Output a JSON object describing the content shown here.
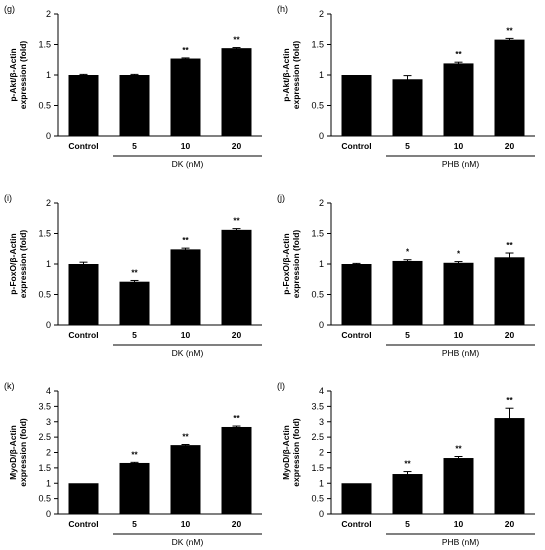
{
  "chart_data": [
    {
      "type": "bar",
      "panel_label": "(g)",
      "ylabel": [
        "p-Akt/β-Actin",
        "expression (fold)"
      ],
      "yticks": [
        "0",
        "0.5",
        "1",
        "1.5",
        "2"
      ],
      "ylim": [
        0,
        2
      ],
      "categories": [
        "Control",
        "5",
        "10",
        "20"
      ],
      "group_label": "DK  (nM)",
      "values": [
        1.0,
        1.0,
        1.27,
        1.44
      ],
      "errors": [
        0.01,
        0.01,
        0.01,
        0.01
      ],
      "significance": [
        "",
        "",
        "**",
        "**"
      ],
      "bar_color": "#000000"
    },
    {
      "type": "bar",
      "panel_label": "(h)",
      "ylabel": [
        "p-Akt/β-Actin",
        "expression (fold)"
      ],
      "yticks": [
        "0",
        "0.5",
        "1",
        "1.5",
        "2"
      ],
      "ylim": [
        0,
        2
      ],
      "categories": [
        "Control",
        "5",
        "10",
        "20"
      ],
      "group_label": "PHB  (nM)",
      "values": [
        1.0,
        0.93,
        1.19,
        1.58
      ],
      "errors": [
        0.0,
        0.06,
        0.02,
        0.02
      ],
      "significance": [
        "",
        "",
        "**",
        "**"
      ],
      "bar_color": "#000000"
    },
    {
      "type": "bar",
      "panel_label": "(i)",
      "ylabel": [
        "p-FoxO/β-Actin",
        "expression (fold)"
      ],
      "yticks": [
        "0",
        "0.5",
        "1",
        "1.5",
        "2"
      ],
      "ylim": [
        0,
        2
      ],
      "categories": [
        "Control",
        "5",
        "10",
        "20"
      ],
      "group_label": "DK  (nM)",
      "values": [
        1.0,
        0.71,
        1.24,
        1.56
      ],
      "errors": [
        0.03,
        0.02,
        0.02,
        0.02
      ],
      "significance": [
        "",
        "**",
        "**",
        "**"
      ],
      "bar_color": "#000000"
    },
    {
      "type": "bar",
      "panel_label": "(j)",
      "ylabel": [
        "p-FoxO/β-Actin",
        "expression (fold)"
      ],
      "yticks": [
        "0",
        "0.5",
        "1",
        "1.5",
        "2"
      ],
      "ylim": [
        0,
        2
      ],
      "categories": [
        "Control",
        "5",
        "10",
        "20"
      ],
      "group_label": "PHB  (nM)",
      "values": [
        1.0,
        1.05,
        1.02,
        1.11
      ],
      "errors": [
        0.01,
        0.02,
        0.02,
        0.07
      ],
      "significance": [
        "",
        "*",
        "*",
        "**"
      ],
      "bar_color": "#000000"
    },
    {
      "type": "bar",
      "panel_label": "(k)",
      "ylabel": [
        "MyoD/β-Actin",
        "expression (fold)"
      ],
      "yticks": [
        "0",
        "0.5",
        "1",
        "1.5",
        "2",
        "2.5",
        "3",
        "3.5",
        "4"
      ],
      "ylim": [
        0,
        4
      ],
      "categories": [
        "Control",
        "5",
        "10",
        "20"
      ],
      "group_label": "DK  (nM)",
      "values": [
        1.0,
        1.66,
        2.24,
        2.83
      ],
      "errors": [
        0.0,
        0.02,
        0.02,
        0.03
      ],
      "significance": [
        "",
        "**",
        "**",
        "**"
      ],
      "bar_color": "#000000"
    },
    {
      "type": "bar",
      "panel_label": "(l)",
      "ylabel": [
        "MyoD/β-Actin",
        "expression (fold)"
      ],
      "yticks": [
        "0",
        "0.5",
        "1",
        "1.5",
        "2",
        "2.5",
        "3",
        "3.5",
        "4"
      ],
      "ylim": [
        0,
        4
      ],
      "categories": [
        "Control",
        "5",
        "10",
        "20"
      ],
      "group_label": "PHB  (nM)",
      "values": [
        1.0,
        1.3,
        1.82,
        3.12
      ],
      "errors": [
        0.0,
        0.08,
        0.05,
        0.32
      ],
      "significance": [
        "",
        "**",
        "**",
        "**"
      ],
      "bar_color": "#000000"
    }
  ]
}
